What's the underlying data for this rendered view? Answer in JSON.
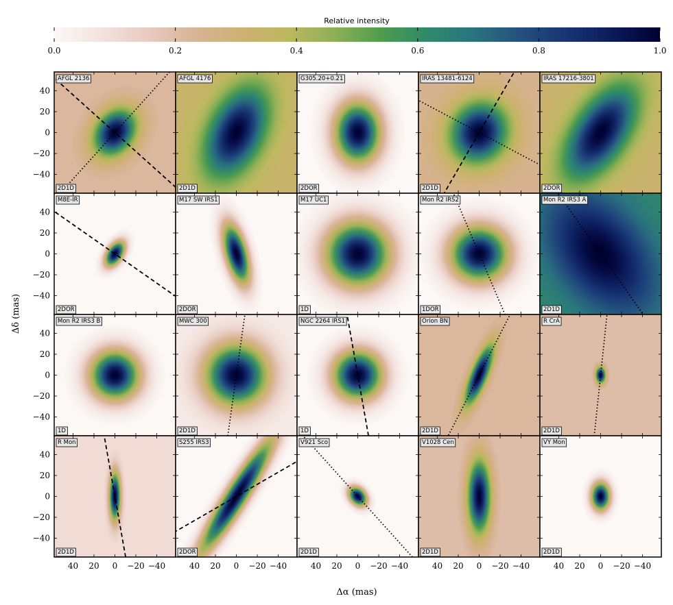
{
  "chart_data": {
    "type": "heatmap",
    "colorbar": {
      "title": "Relative intensity",
      "ticks": [
        "0.0",
        "0.2",
        "0.4",
        "0.6",
        "0.8",
        "1.0"
      ],
      "range": [
        0.0,
        1.0
      ],
      "colormap": [
        "#fbf8f6",
        "#f3e3de",
        "#e8cbc1",
        "#d8b497",
        "#cfb073",
        "#bcb85e",
        "#8eb056",
        "#4f9c4d",
        "#2f8a6b",
        "#2a737f",
        "#24507e",
        "#173474",
        "#0a1a5a",
        "#000030"
      ]
    },
    "xlabel": "Δα (mas)",
    "ylabel": "Δδ (mas)",
    "xlim": [
      58,
      -58
    ],
    "ylim": [
      -58,
      58
    ],
    "xticks": [
      40,
      20,
      0,
      -20,
      -40
    ],
    "xtick_labels": [
      "40",
      "20",
      "0",
      "−20",
      "−40"
    ],
    "yticks": [
      40,
      20,
      0,
      -20,
      -40
    ],
    "ytick_labels": [
      "40",
      "20",
      "0",
      "−20",
      "−40"
    ],
    "panels": [
      {
        "name": "AFGL 2136",
        "model": "2D1D",
        "bg": 0.22,
        "peak": 1.0,
        "sx": 16,
        "sy": 12,
        "pa": 55,
        "lines": [
          {
            "style": "dashed",
            "pa": 48
          },
          {
            "style": "dotted",
            "pa": 138
          }
        ]
      },
      {
        "name": "AFGL 4176",
        "model": "2D1D",
        "bg": 0.34,
        "peak": 1.0,
        "sx": 30,
        "sy": 17,
        "pa": 65,
        "lines": []
      },
      {
        "name": "G305.20+0.21",
        "model": "2DOR",
        "bg": 0.0,
        "peak": 1.0,
        "sx": 15,
        "sy": 20,
        "pa": 0,
        "lines": []
      },
      {
        "name": "IRAS 13481-6124",
        "model": "2D1D",
        "bg": 0.25,
        "peak": 1.0,
        "sx": 20,
        "sy": 18,
        "pa": 60,
        "lines": [
          {
            "style": "dashed",
            "pa": 150
          },
          {
            "style": "dotted",
            "pa": 62
          }
        ]
      },
      {
        "name": "IRAS 17216-3801",
        "model": "2DOR",
        "bg": 0.33,
        "peak": 1.0,
        "sx": 34,
        "sy": 17,
        "pa": 57,
        "lines": []
      },
      {
        "name": "M8E-IR",
        "model": "2DOR",
        "bg": 0.0,
        "peak": 1.0,
        "sx": 9,
        "sy": 5,
        "pa": 58,
        "lines": [
          {
            "style": "dashed",
            "pa": 55
          }
        ]
      },
      {
        "name": "M17 SW IRS1",
        "model": "2DOR",
        "bg": 0.0,
        "peak": 1.0,
        "sx": 7,
        "sy": 20,
        "pa": 15,
        "lines": []
      },
      {
        "name": "M17 UC1",
        "model": "1D",
        "bg": 0.0,
        "peak": 1.0,
        "sx": 21,
        "sy": 21,
        "pa": 0,
        "lines": []
      },
      {
        "name": "Mon R2 IRS2",
        "model": "1DOR",
        "bg": 0.0,
        "peak": 1.0,
        "sx": 19,
        "sy": 18,
        "pa": 0,
        "lines": [
          {
            "style": "dotted",
            "pa": 23
          }
        ]
      },
      {
        "name": "Mon R2 IRS3 A",
        "model": "2D1D",
        "bg": 0.62,
        "peak": 1.0,
        "sx": 45,
        "sy": 28,
        "pa": 128,
        "lines": [
          {
            "style": "dotted",
            "pa": 35
          }
        ]
      },
      {
        "name": "Mon R2 IRS3 B",
        "model": "1D",
        "bg": 0.0,
        "peak": 1.0,
        "sx": 16,
        "sy": 16,
        "pa": 0,
        "lines": []
      },
      {
        "name": "MWC 300",
        "model": "2D1D",
        "bg": 0.05,
        "peak": 1.0,
        "sx": 20,
        "sy": 20,
        "pa": 0,
        "lines": [
          {
            "style": "dotted",
            "pa": 172
          }
        ]
      },
      {
        "name": "NGC 2264 IRS1",
        "model": "1D",
        "bg": 0.0,
        "peak": 1.0,
        "sx": 16,
        "sy": 16,
        "pa": 0,
        "lines": [
          {
            "style": "dashed",
            "pa": 10
          }
        ]
      },
      {
        "name": "Orion BN",
        "model": "2D1D",
        "bg": 0.22,
        "peak": 1.0,
        "sx": 5,
        "sy": 20,
        "pa": 158,
        "lines": [
          {
            "style": "dotted",
            "pa": 153
          }
        ]
      },
      {
        "name": "R CrA",
        "model": "2D1D",
        "bg": 0.2,
        "peak": 1.0,
        "sx": 3,
        "sy": 5,
        "pa": 0,
        "lines": [
          {
            "style": "dotted",
            "pa": 174
          }
        ]
      },
      {
        "name": "R Mon",
        "model": "2D1D",
        "bg": 0.1,
        "peak": 1.0,
        "sx": 15,
        "sy": 3.5,
        "pa": 90,
        "lines": [
          {
            "style": "dashed",
            "pa": 10
          }
        ]
      },
      {
        "name": "S255 IRS3",
        "model": "2DOR",
        "bg": 0.0,
        "peak": 1.0,
        "sx": 7,
        "sy": 44,
        "pa": 148,
        "lines": [
          {
            "style": "dashed",
            "pa": 120
          }
        ]
      },
      {
        "name": "V921 Sco",
        "model": "2D1D",
        "bg": 0.0,
        "peak": 1.0,
        "sx": 5,
        "sy": 7,
        "pa": 40,
        "lines": [
          {
            "style": "dotted",
            "pa": 42
          }
        ]
      },
      {
        "name": "V1028 Cen",
        "model": "2D1D",
        "bg": 0.2,
        "peak": 1.0,
        "sx": 7,
        "sy": 23,
        "pa": 0,
        "lines": []
      },
      {
        "name": "VY Mon",
        "model": "2D1D",
        "bg": 0.0,
        "peak": 1.0,
        "sx": 6,
        "sy": 9,
        "pa": 0,
        "lines": []
      }
    ]
  }
}
